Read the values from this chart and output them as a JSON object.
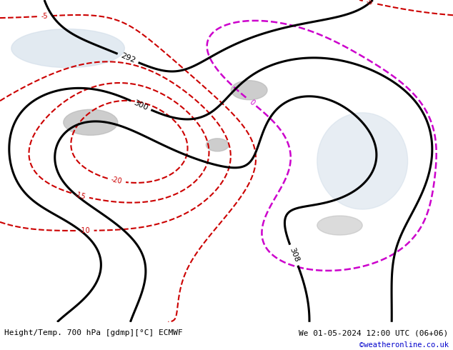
{
  "title_left": "Height/Temp. 700 hPa [gdmp][°C] ECMWF",
  "title_right": "We 01-05-2024 12:00 UTC (06+06)",
  "title_right2": "©weatheronline.co.uk",
  "background_land": "#c8e6a0",
  "background_sea": "#e0e8f0",
  "background_gray": "#c0c0c0",
  "text_color_left": "#000000",
  "text_color_right": "#000000",
  "text_color_url": "#0000cc",
  "geopotential_color": "#000000",
  "temp_negative_color": "#cc0000",
  "temp_positive_color": "#cc6600",
  "temp_zero_color": "#cc00cc",
  "fig_width": 6.34,
  "fig_height": 4.9,
  "dpi": 100
}
